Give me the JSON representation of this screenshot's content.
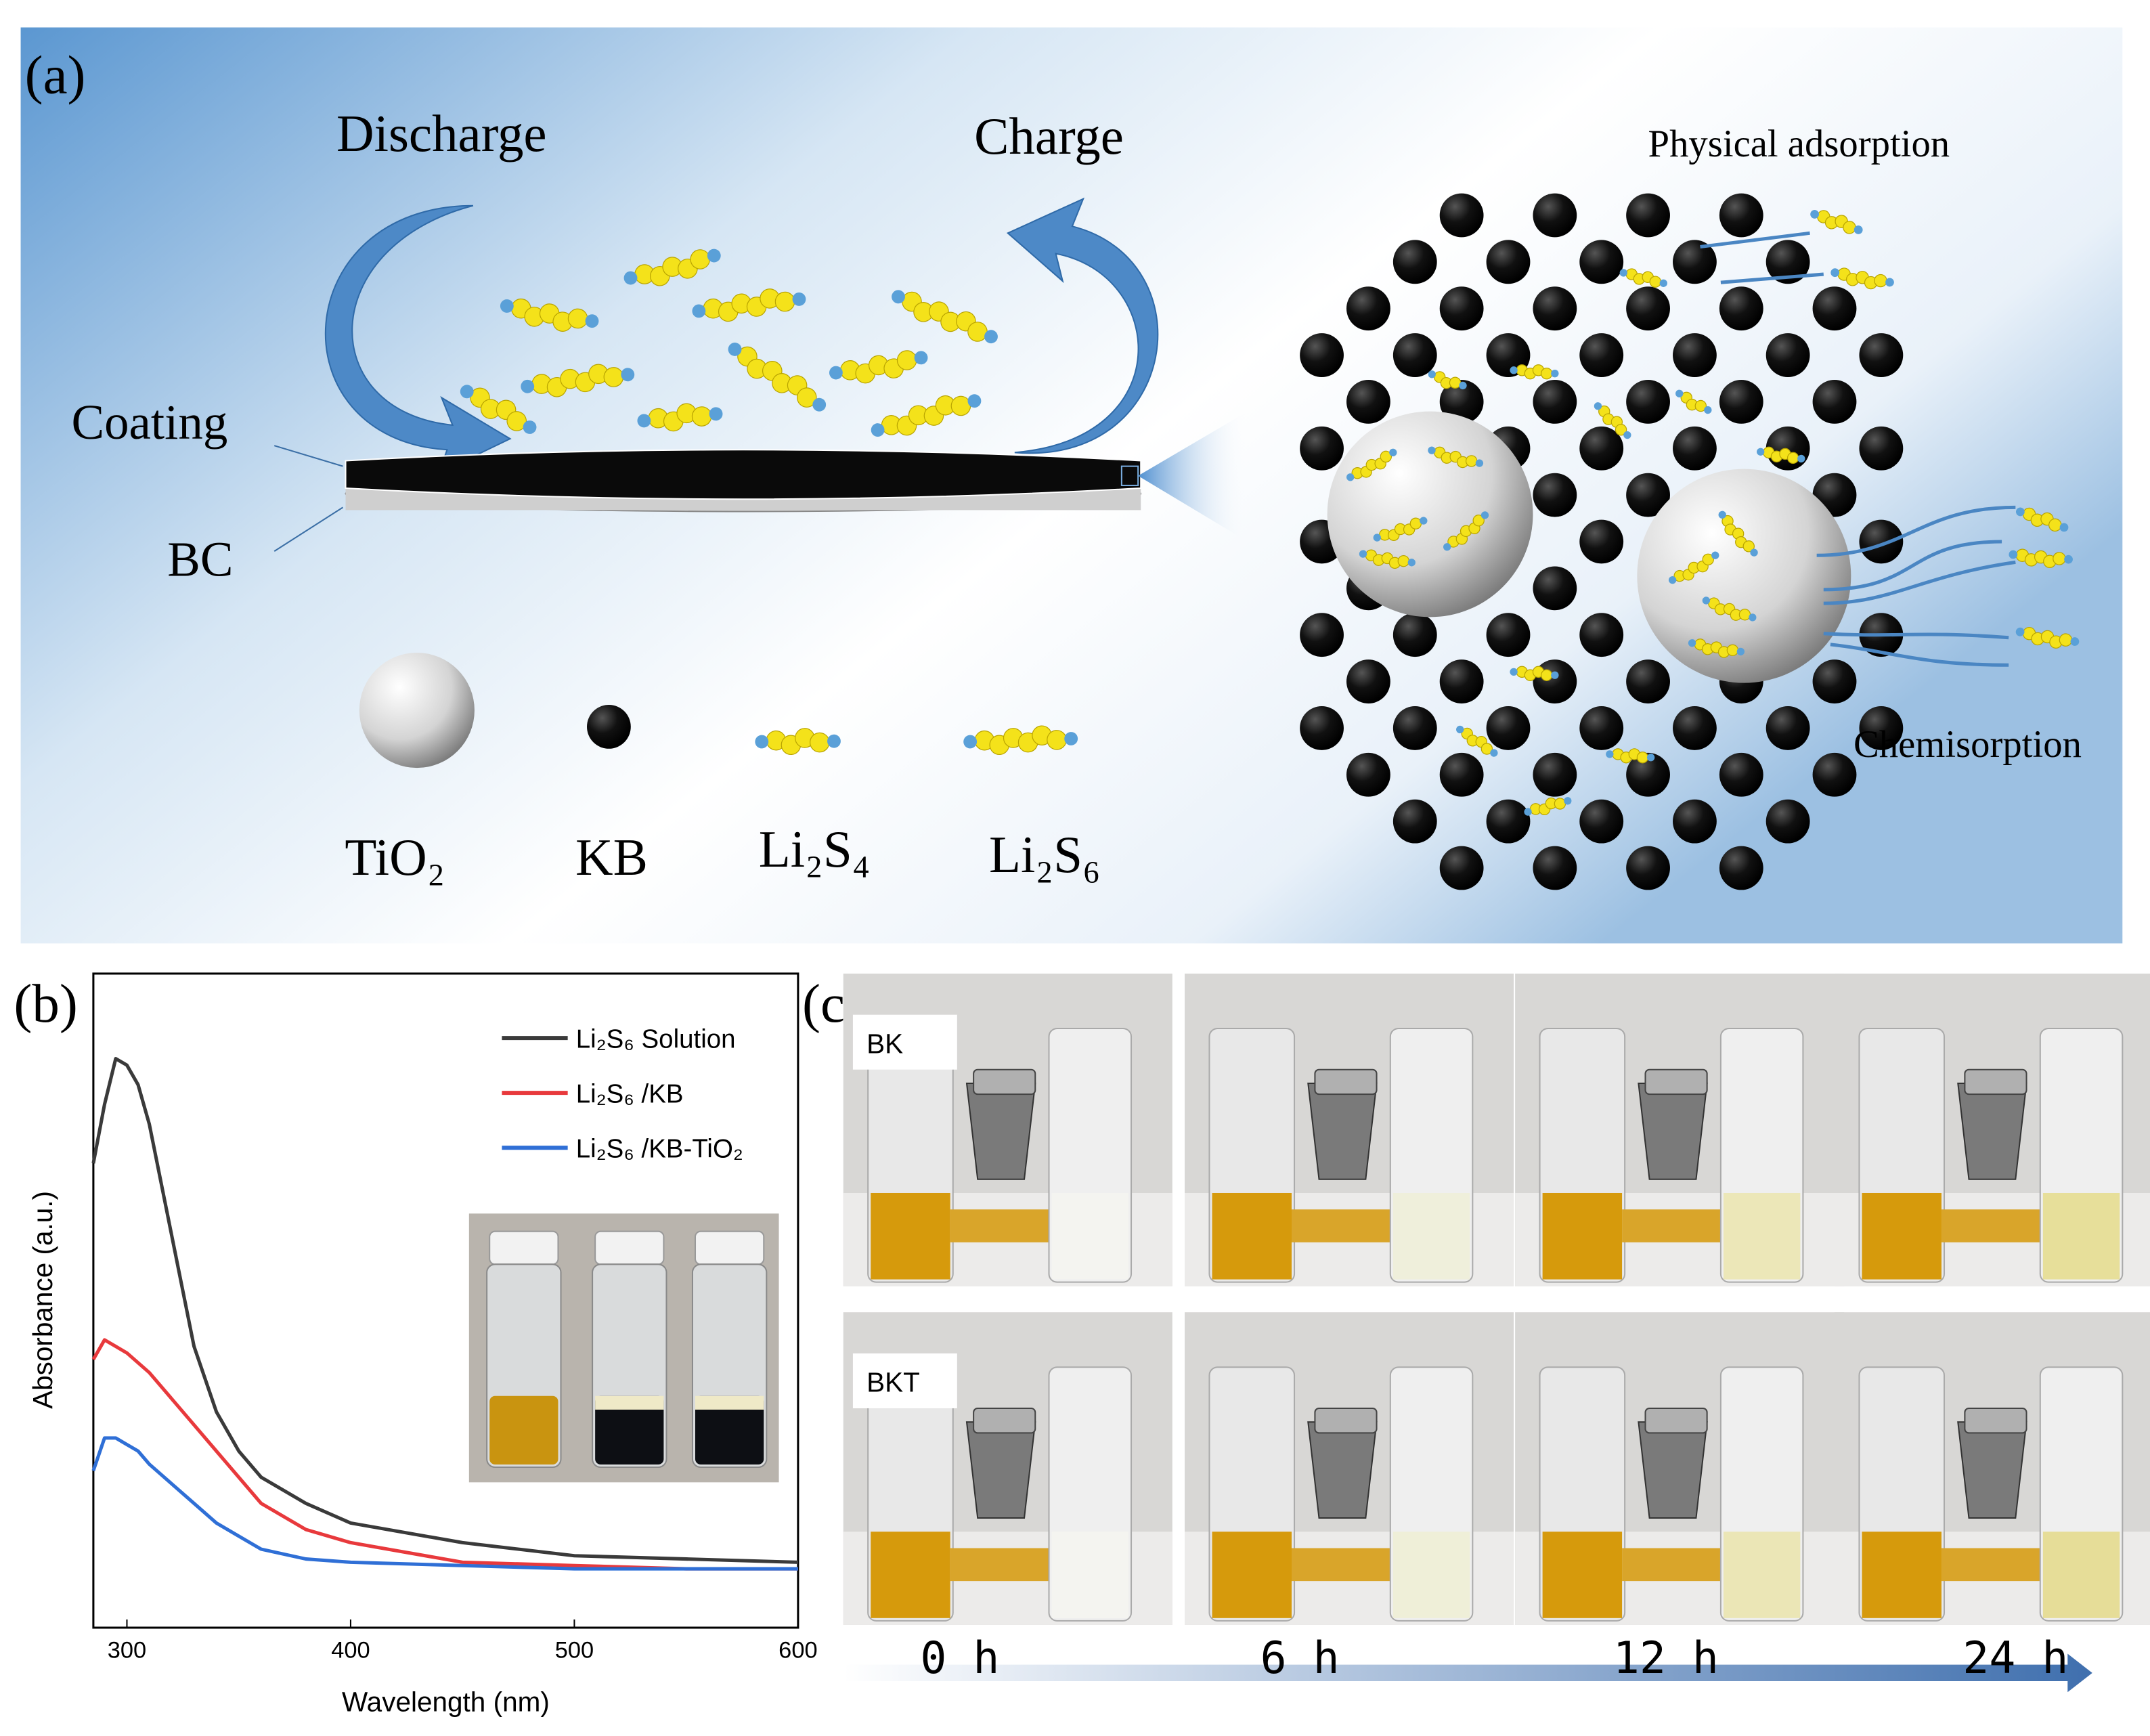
{
  "panel_a": {
    "label": "(a)",
    "discharge": "Discharge",
    "charge": "Charge",
    "coating": "Coating",
    "bc": "BC",
    "physical_adsorption": "Physical adsorption",
    "chemisorption": "Chemisorption",
    "legend": [
      "TiO₂",
      "KB",
      "Li₂S₄",
      "Li₂S₆"
    ]
  },
  "chart_data": {
    "type": "line",
    "label": "(b)",
    "x_label": "Wavelength (nm)",
    "y_label": "Absorbance (a.u.)",
    "x": [
      285,
      290,
      295,
      300,
      305,
      310,
      320,
      330,
      340,
      350,
      360,
      380,
      400,
      450,
      500,
      550,
      600
    ],
    "series": [
      {
        "name": "Li₂S₆ Solution",
        "color": "#3a3a3a",
        "values": [
          0.71,
          0.8,
          0.87,
          0.86,
          0.83,
          0.77,
          0.6,
          0.43,
          0.33,
          0.27,
          0.23,
          0.19,
          0.16,
          0.13,
          0.11,
          0.105,
          0.1
        ]
      },
      {
        "name": "Li₂S₆ /KB",
        "color": "#e8393c",
        "values": [
          0.41,
          0.44,
          0.43,
          0.42,
          0.405,
          0.39,
          0.35,
          0.31,
          0.27,
          0.23,
          0.19,
          0.15,
          0.13,
          0.1,
          0.095,
          0.09,
          0.09
        ]
      },
      {
        "name": "Li₂S₆ /KB-TiO₂",
        "color": "#2f6fd6",
        "values": [
          0.24,
          0.29,
          0.29,
          0.28,
          0.27,
          0.25,
          0.22,
          0.19,
          0.16,
          0.14,
          0.12,
          0.105,
          0.1,
          0.095,
          0.09,
          0.09,
          0.09
        ]
      }
    ],
    "xlim": [
      285,
      600
    ],
    "ylim": [
      0,
      1
    ],
    "xticks": [
      300,
      400,
      500,
      600
    ],
    "legend": "upper right"
  },
  "panel_c": {
    "label": "(c)",
    "rows": [
      "BK",
      "BKT"
    ],
    "times": [
      "0 h",
      "6 h",
      "12 h",
      "24 h"
    ]
  }
}
